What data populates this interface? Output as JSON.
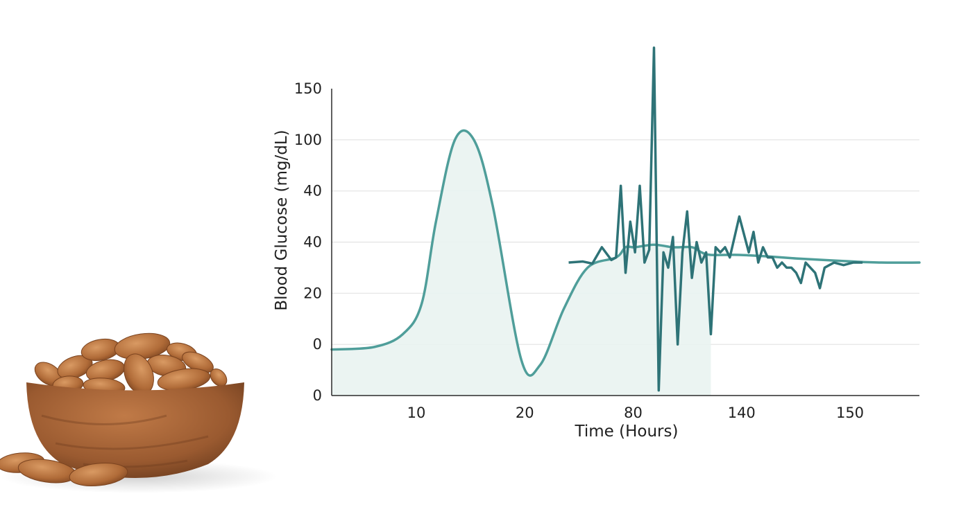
{
  "colors": {
    "background": "#ffffff",
    "fill": "#e9f3f1",
    "smooth_line": "#4f9e9a",
    "noisy_line": "#2e7377",
    "grid": "#e2e2e2",
    "axis": "#2a2a2a"
  },
  "illustration": {
    "subject": "almonds-in-wooden-bowl"
  },
  "chart_data": {
    "type": "line",
    "title": "",
    "xlabel": "Time (Hours)",
    "ylabel": "Blood Glucose (mg/dL)",
    "grid": true,
    "x_ticks": [
      "10",
      "20",
      "80",
      "140",
      "150"
    ],
    "y_ticks": [
      "0",
      "0",
      "20",
      "40",
      "40",
      "100",
      "150"
    ],
    "xlim": [
      0,
      6.2
    ],
    "ylim": [
      0,
      6
    ],
    "series": [
      {
        "style": "smooth-filled",
        "x": [
          0,
          0.45,
          0.75,
          0.95,
          1.1,
          1.3,
          1.5,
          1.7,
          2.0,
          2.2,
          2.45,
          2.7,
          3.0,
          3.1,
          3.2,
          3.4,
          3.6,
          3.8,
          3.9,
          4.0,
          4.3,
          4.6,
          4.9,
          5.2,
          5.5,
          5.8,
          6.2
        ],
        "y": [
          0.9,
          0.95,
          1.2,
          1.8,
          3.4,
          5.0,
          5.0,
          3.7,
          0.7,
          0.6,
          1.7,
          2.5,
          2.7,
          2.9,
          2.9,
          2.95,
          2.9,
          2.9,
          2.8,
          2.75,
          2.75,
          2.72,
          2.68,
          2.65,
          2.62,
          2.6,
          2.6
        ]
      },
      {
        "style": "noisy",
        "x": [
          2.5,
          2.65,
          2.75,
          2.85,
          2.95,
          3.0,
          3.05,
          3.1,
          3.15,
          3.2,
          3.25,
          3.3,
          3.35,
          3.4,
          3.45,
          3.5,
          3.55,
          3.6,
          3.65,
          3.7,
          3.75,
          3.8,
          3.85,
          3.9,
          3.95,
          4.0,
          4.05,
          4.1,
          4.15,
          4.2,
          4.3,
          4.4,
          4.45,
          4.5,
          4.55,
          4.6,
          4.65,
          4.7,
          4.75,
          4.8,
          4.85,
          4.9,
          4.95,
          5.0,
          5.05,
          5.1,
          5.15,
          5.2,
          5.25,
          5.3,
          5.4,
          5.5,
          5.6
        ],
        "y": [
          2.6,
          2.62,
          2.58,
          2.9,
          2.65,
          2.7,
          4.1,
          2.4,
          3.4,
          2.8,
          4.1,
          2.6,
          2.85,
          6.8,
          0.1,
          2.8,
          2.5,
          3.1,
          1.0,
          2.8,
          3.6,
          2.3,
          3.0,
          2.6,
          2.8,
          1.2,
          2.9,
          2.8,
          2.9,
          2.7,
          3.5,
          2.8,
          3.2,
          2.6,
          2.9,
          2.7,
          2.7,
          2.5,
          2.6,
          2.5,
          2.5,
          2.4,
          2.2,
          2.6,
          2.5,
          2.4,
          2.1,
          2.5,
          2.55,
          2.6,
          2.55,
          2.6,
          2.6
        ]
      }
    ]
  }
}
